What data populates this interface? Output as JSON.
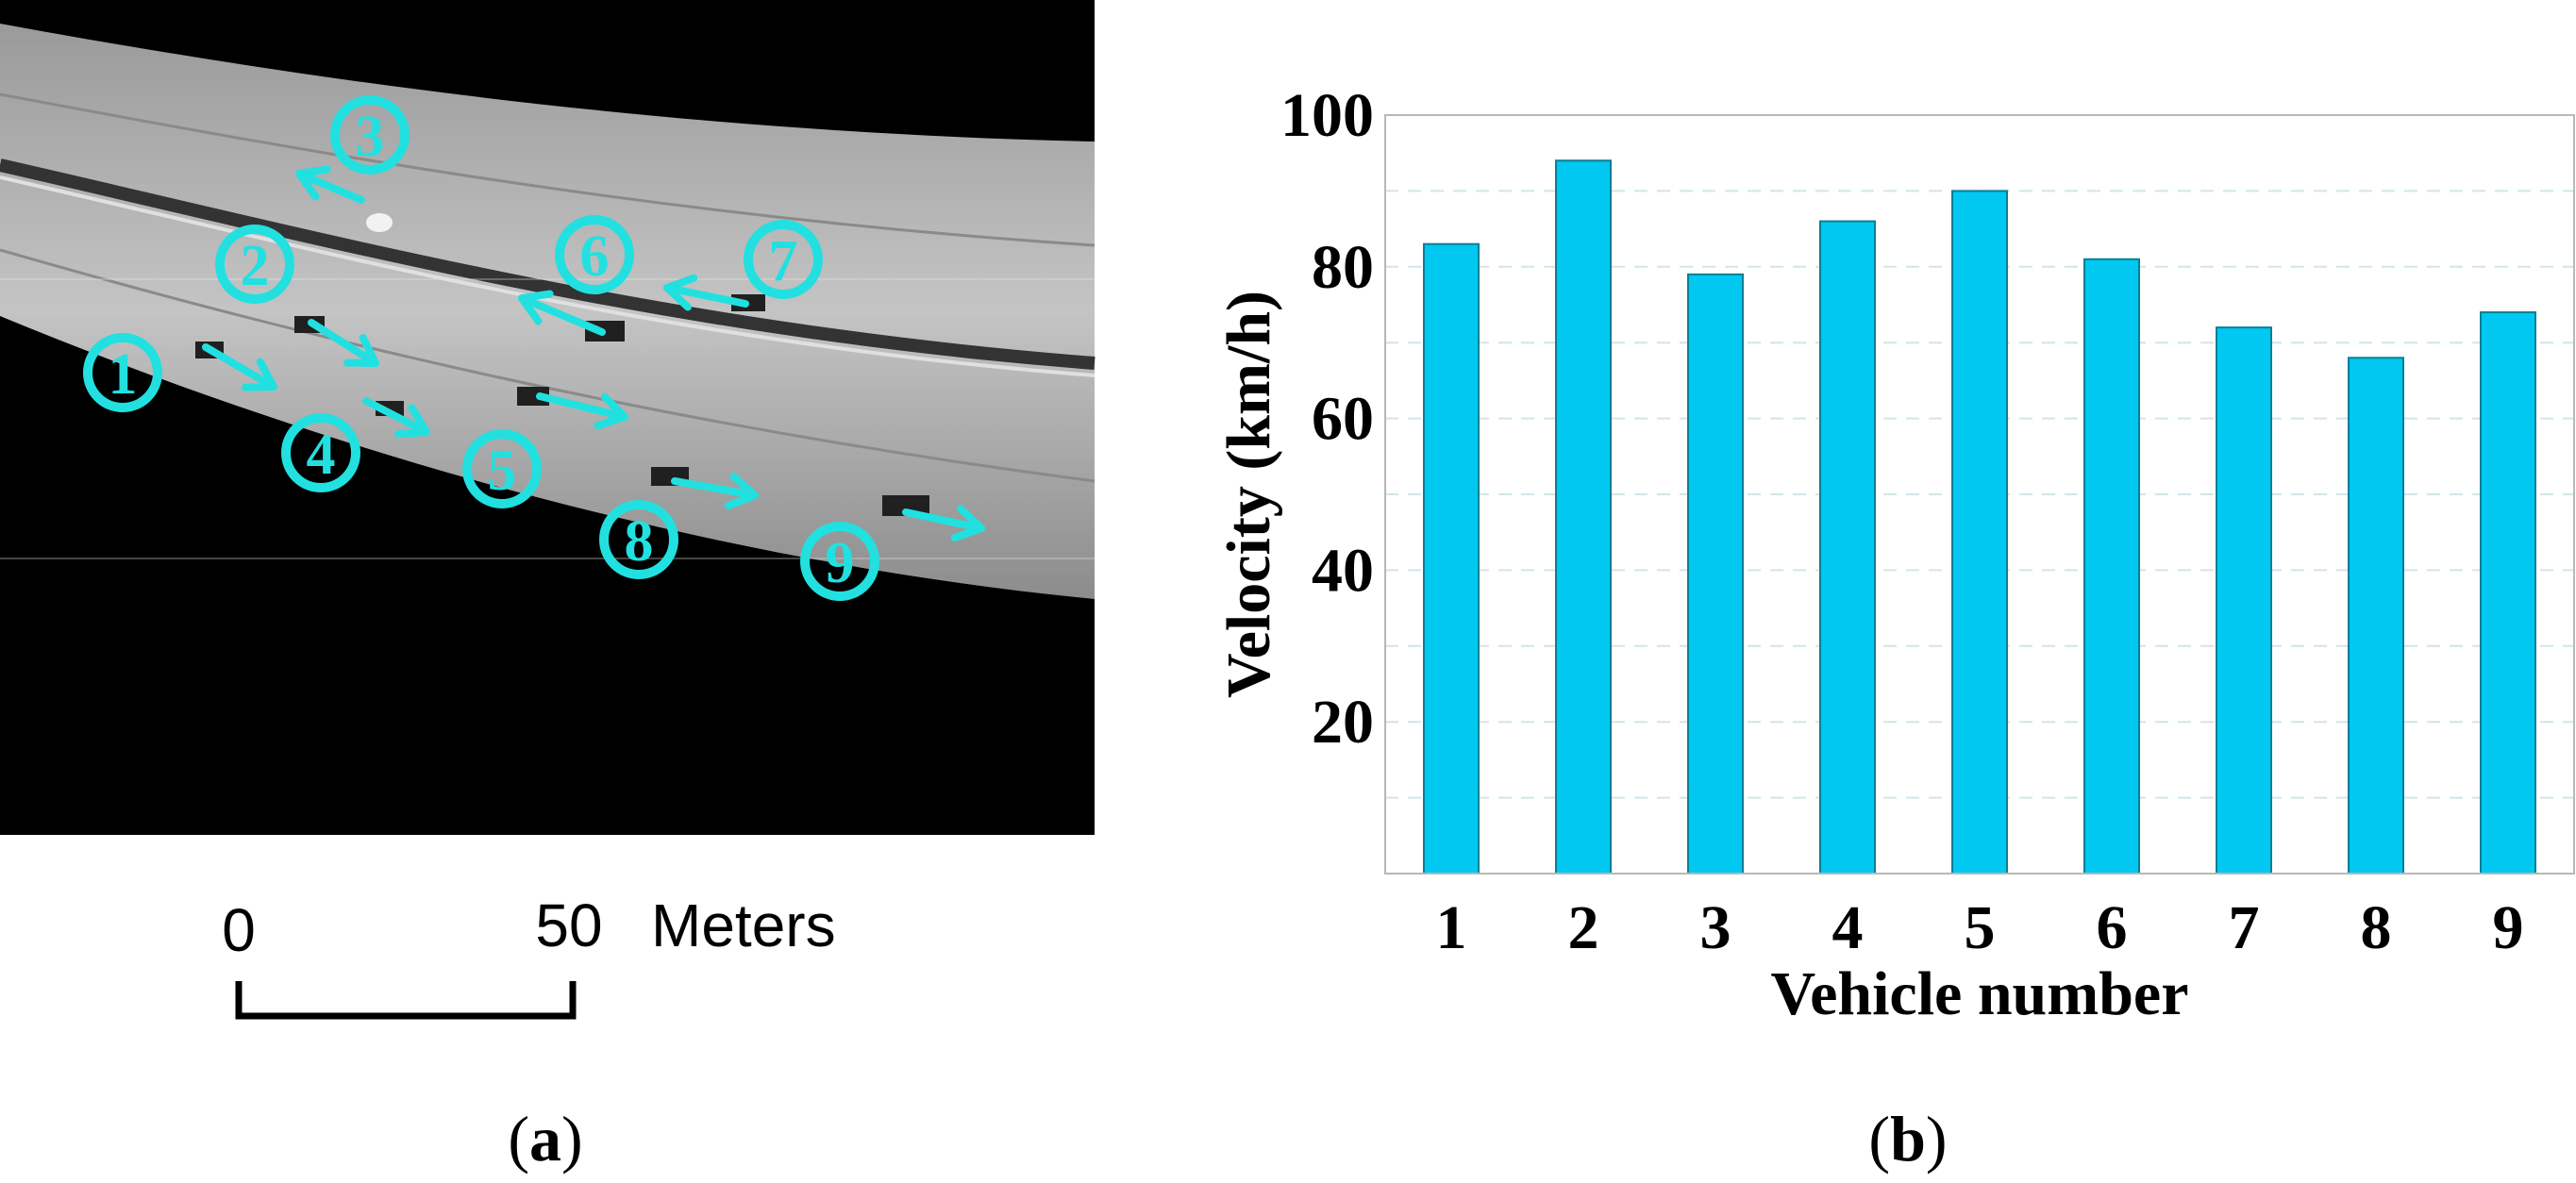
{
  "panel_a": {
    "label_open": "(",
    "label_letter": "a",
    "label_close": ")",
    "scale_bar": {
      "start": "0",
      "end": "50",
      "unit": "Meters"
    },
    "markers": [
      "1",
      "2",
      "3",
      "4",
      "5",
      "6",
      "7",
      "8",
      "9"
    ],
    "colors": {
      "marker": "#22e0e0",
      "background": "#000000",
      "road": "#b4b4b4"
    }
  },
  "panel_b": {
    "label_open": "(",
    "label_letter": "b",
    "label_close": ")"
  },
  "chart_data": {
    "type": "bar",
    "categories": [
      "1",
      "2",
      "3",
      "4",
      "5",
      "6",
      "7",
      "8",
      "9"
    ],
    "values": [
      83,
      94,
      79,
      86,
      90,
      81,
      72,
      68,
      74
    ],
    "title": "",
    "xlabel": "Vehicle number",
    "ylabel": "Velocity (km/h)",
    "ylim": [
      0,
      100
    ],
    "yticks": [
      20,
      40,
      60,
      80,
      100
    ],
    "grid": true,
    "legend": "none",
    "bar_color": "#00c8f0",
    "bar_edge_color": "#0a7f97"
  }
}
